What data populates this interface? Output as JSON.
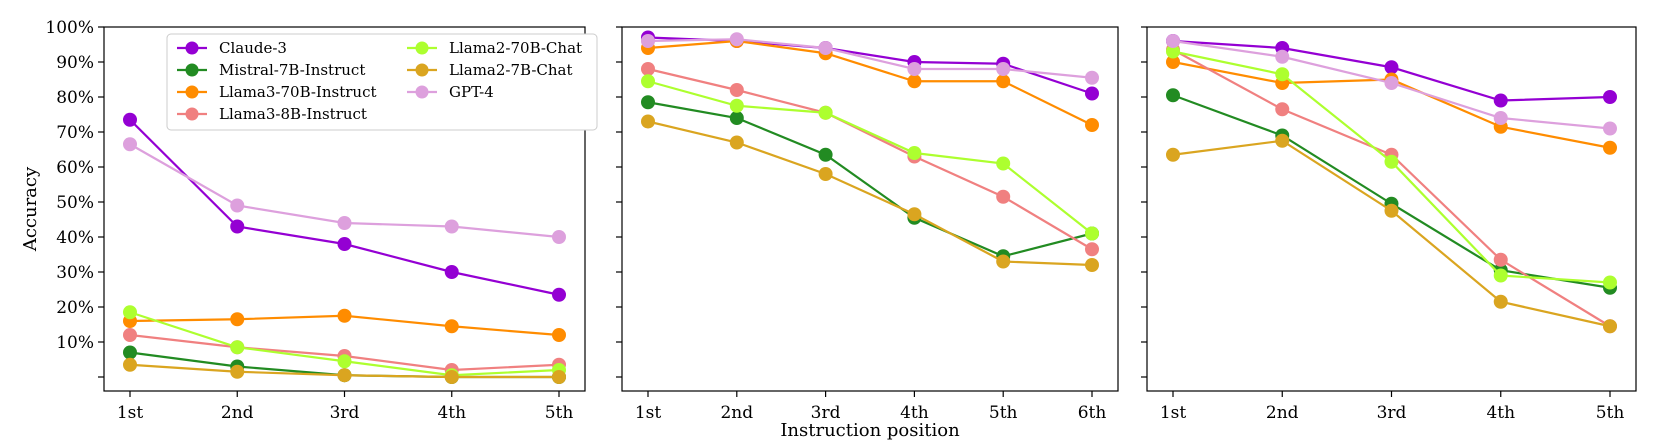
{
  "chart_data": {
    "type": "line",
    "ylabel": "Accuracy",
    "xlabel": "Instruction position",
    "ylim": [
      -4,
      100
    ],
    "yticks": [
      {
        "value": 10,
        "label": "10%"
      },
      {
        "value": 20,
        "label": "20%"
      },
      {
        "value": 30,
        "label": "30%"
      },
      {
        "value": 40,
        "label": "40%"
      },
      {
        "value": 50,
        "label": "50%"
      },
      {
        "value": 60,
        "label": "60%"
      },
      {
        "value": 70,
        "label": "70%"
      },
      {
        "value": 80,
        "label": "80%"
      },
      {
        "value": 90,
        "label": "90%"
      },
      {
        "value": 100,
        "label": "100%"
      }
    ],
    "minor_yticks": [
      0
    ],
    "legend": {
      "placement": "top-left of first panel, two columns",
      "entries": [
        {
          "name": "Claude-3",
          "color": "#9400D3"
        },
        {
          "name": "Mistral-7B-Instruct",
          "color": "#228B22"
        },
        {
          "name": "Llama3-70B-Instruct",
          "color": "#FF8C00"
        },
        {
          "name": "Llama3-8B-Instruct",
          "color": "#F08080"
        },
        {
          "name": "Llama2-70B-Chat",
          "color": "#ADFF2F"
        },
        {
          "name": "Llama2-7B-Chat",
          "color": "#DAA520"
        },
        {
          "name": "GPT-4",
          "color": "#DDA0DD"
        }
      ]
    },
    "panels": [
      {
        "categories": [
          "1st",
          "2nd",
          "3rd",
          "4th",
          "5th"
        ],
        "series": [
          {
            "name": "Claude-3",
            "color": "#9400D3",
            "values": [
              73.5,
              43,
              38,
              30,
              23.5
            ]
          },
          {
            "name": "Mistral-7B-Instruct",
            "color": "#228B22",
            "values": [
              7,
              3,
              0.5,
              0,
              0
            ]
          },
          {
            "name": "Llama3-70B-Instruct",
            "color": "#FF8C00",
            "values": [
              16,
              16.5,
              17.5,
              14.5,
              12
            ]
          },
          {
            "name": "Llama3-8B-Instruct",
            "color": "#F08080",
            "values": [
              12,
              8.5,
              6,
              2,
              3.5
            ]
          },
          {
            "name": "Llama2-70B-Chat",
            "color": "#ADFF2F",
            "values": [
              18.5,
              8.5,
              4.5,
              0.5,
              2
            ]
          },
          {
            "name": "Llama2-7B-Chat",
            "color": "#DAA520",
            "values": [
              3.5,
              1.5,
              0.5,
              0,
              0
            ]
          },
          {
            "name": "GPT-4",
            "color": "#DDA0DD",
            "values": [
              66.5,
              49,
              44,
              43,
              40
            ]
          }
        ]
      },
      {
        "categories": [
          "1st",
          "2nd",
          "3rd",
          "4th",
          "5th",
          "6th"
        ],
        "series": [
          {
            "name": "Claude-3",
            "color": "#9400D3",
            "values": [
              97,
              96,
              94,
              90,
              89.5,
              81
            ]
          },
          {
            "name": "Mistral-7B-Instruct",
            "color": "#228B22",
            "values": [
              78.5,
              74,
              63.5,
              45.5,
              34.5,
              41
            ]
          },
          {
            "name": "Llama3-70B-Instruct",
            "color": "#FF8C00",
            "values": [
              94,
              96,
              92.5,
              84.5,
              84.5,
              72
            ]
          },
          {
            "name": "Llama3-8B-Instruct",
            "color": "#F08080",
            "values": [
              88,
              82,
              75.5,
              63,
              51.5,
              36.5
            ]
          },
          {
            "name": "Llama2-70B-Chat",
            "color": "#ADFF2F",
            "values": [
              84.5,
              77.5,
              75.5,
              64,
              61,
              41
            ]
          },
          {
            "name": "Llama2-7B-Chat",
            "color": "#DAA520",
            "values": [
              73,
              67,
              58,
              46.5,
              33,
              32
            ]
          },
          {
            "name": "GPT-4",
            "color": "#DDA0DD",
            "values": [
              96,
              96.5,
              94,
              88,
              88,
              85.5
            ]
          }
        ]
      },
      {
        "categories": [
          "1st",
          "2nd",
          "3rd",
          "4th",
          "5th"
        ],
        "series": [
          {
            "name": "Claude-3",
            "color": "#9400D3",
            "values": [
              96,
              94,
              88.5,
              79,
              80
            ]
          },
          {
            "name": "Mistral-7B-Instruct",
            "color": "#228B22",
            "values": [
              80.5,
              69,
              49.5,
              30.5,
              25.5
            ]
          },
          {
            "name": "Llama3-70B-Instruct",
            "color": "#FF8C00",
            "values": [
              90,
              84,
              85,
              71.5,
              65.5
            ]
          },
          {
            "name": "Llama3-8B-Instruct",
            "color": "#F08080",
            "values": [
              93.5,
              76.5,
              63.5,
              33.5,
              14.5
            ]
          },
          {
            "name": "Llama2-70B-Chat",
            "color": "#ADFF2F",
            "values": [
              93,
              86.5,
              61.5,
              29,
              27
            ]
          },
          {
            "name": "Llama2-7B-Chat",
            "color": "#DAA520",
            "values": [
              63.5,
              67.5,
              47.5,
              21.5,
              14.5
            ]
          },
          {
            "name": "GPT-4",
            "color": "#DDA0DD",
            "values": [
              96,
              91.5,
              84,
              74,
              71
            ]
          }
        ]
      }
    ]
  }
}
